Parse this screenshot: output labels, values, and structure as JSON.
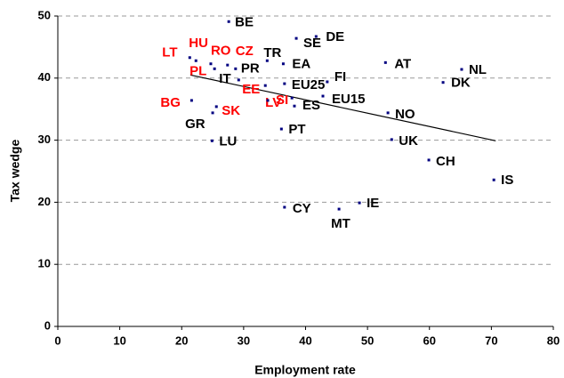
{
  "chart_data": {
    "type": "scatter",
    "xlabel": "Employment rate",
    "ylabel": "Tax wedge",
    "xlim": [
      0,
      80
    ],
    "xticks": [
      0,
      10,
      20,
      30,
      40,
      50,
      60,
      70,
      80
    ],
    "ylim": [
      0,
      50
    ],
    "yticks": [
      0,
      10,
      20,
      30,
      40,
      50
    ],
    "grid": true,
    "marker_color": "#000080",
    "trendline_color": "#000000",
    "trendline": {
      "x": [
        21.4,
        70.7
      ],
      "y": [
        40.5,
        29.9
      ]
    },
    "points": [
      {
        "label": "BE",
        "x": 27.6,
        "y": 49.1,
        "color": "#000000"
      },
      {
        "label": "SE",
        "x": 38.5,
        "y": 46.4,
        "color": "#000000"
      },
      {
        "label": "DE",
        "x": 41.7,
        "y": 46.7,
        "color": "#000000"
      },
      {
        "label": "TR",
        "x": 33.8,
        "y": 42.8,
        "color": "#000000"
      },
      {
        "label": "EA",
        "x": 36.4,
        "y": 42.3,
        "color": "#000000"
      },
      {
        "label": "AT",
        "x": 52.9,
        "y": 42.5,
        "color": "#000000"
      },
      {
        "label": "NL",
        "x": 65.2,
        "y": 41.4,
        "color": "#000000"
      },
      {
        "label": "DK",
        "x": 62.2,
        "y": 39.3,
        "color": "#000000"
      },
      {
        "label": "FI",
        "x": 43.5,
        "y": 39.4,
        "color": "#000000"
      },
      {
        "label": "EU25",
        "x": 36.6,
        "y": 39.1,
        "color": "#000000"
      },
      {
        "label": "EU15",
        "x": 42.8,
        "y": 37.1,
        "color": "#000000"
      },
      {
        "label": "LT",
        "x": 21.3,
        "y": 43.3,
        "color": "#ff0000"
      },
      {
        "label": "HU",
        "x": 22.3,
        "y": 42.8,
        "color": "#ff0000"
      },
      {
        "label": "RO",
        "x": 24.7,
        "y": 42.3,
        "color": "#ff0000"
      },
      {
        "label": "CZ",
        "x": 27.4,
        "y": 42.1,
        "color": "#ff0000"
      },
      {
        "label": "PL",
        "x": 25.3,
        "y": 41.5,
        "color": "#ff0000"
      },
      {
        "label": "PR",
        "x": 28.7,
        "y": 41.5,
        "color": "#000000"
      },
      {
        "label": "IT",
        "x": 29.2,
        "y": 39.7,
        "color": "#000000"
      },
      {
        "label": "EE",
        "x": 33.5,
        "y": 38.8,
        "color": "#ff0000"
      },
      {
        "label": "LV",
        "x": 37.8,
        "y": 36.8,
        "color": "#ff0000"
      },
      {
        "label": "ES",
        "x": 38.2,
        "y": 35.5,
        "color": "#000000"
      },
      {
        "label": "SI",
        "x": 33.9,
        "y": 36.4,
        "color": "#ff0000"
      },
      {
        "label": "BG",
        "x": 21.6,
        "y": 36.4,
        "color": "#ff0000"
      },
      {
        "label": "SK",
        "x": 25.6,
        "y": 35.4,
        "color": "#ff0000"
      },
      {
        "label": "GR",
        "x": 25.0,
        "y": 34.4,
        "color": "#000000"
      },
      {
        "label": "LU",
        "x": 24.9,
        "y": 29.9,
        "color": "#000000"
      },
      {
        "label": "PT",
        "x": 36.1,
        "y": 31.8,
        "color": "#000000"
      },
      {
        "label": "NO",
        "x": 53.3,
        "y": 34.4,
        "color": "#000000"
      },
      {
        "label": "UK",
        "x": 53.9,
        "y": 30.1,
        "color": "#000000"
      },
      {
        "label": "CH",
        "x": 59.9,
        "y": 26.8,
        "color": "#000000"
      },
      {
        "label": "IS",
        "x": 70.4,
        "y": 23.6,
        "color": "#000000"
      },
      {
        "label": "CY",
        "x": 36.6,
        "y": 19.2,
        "color": "#000000"
      },
      {
        "label": "MT",
        "x": 45.4,
        "y": 18.9,
        "color": "#000000"
      },
      {
        "label": "IE",
        "x": 48.7,
        "y": 19.9,
        "color": "#000000"
      }
    ]
  }
}
